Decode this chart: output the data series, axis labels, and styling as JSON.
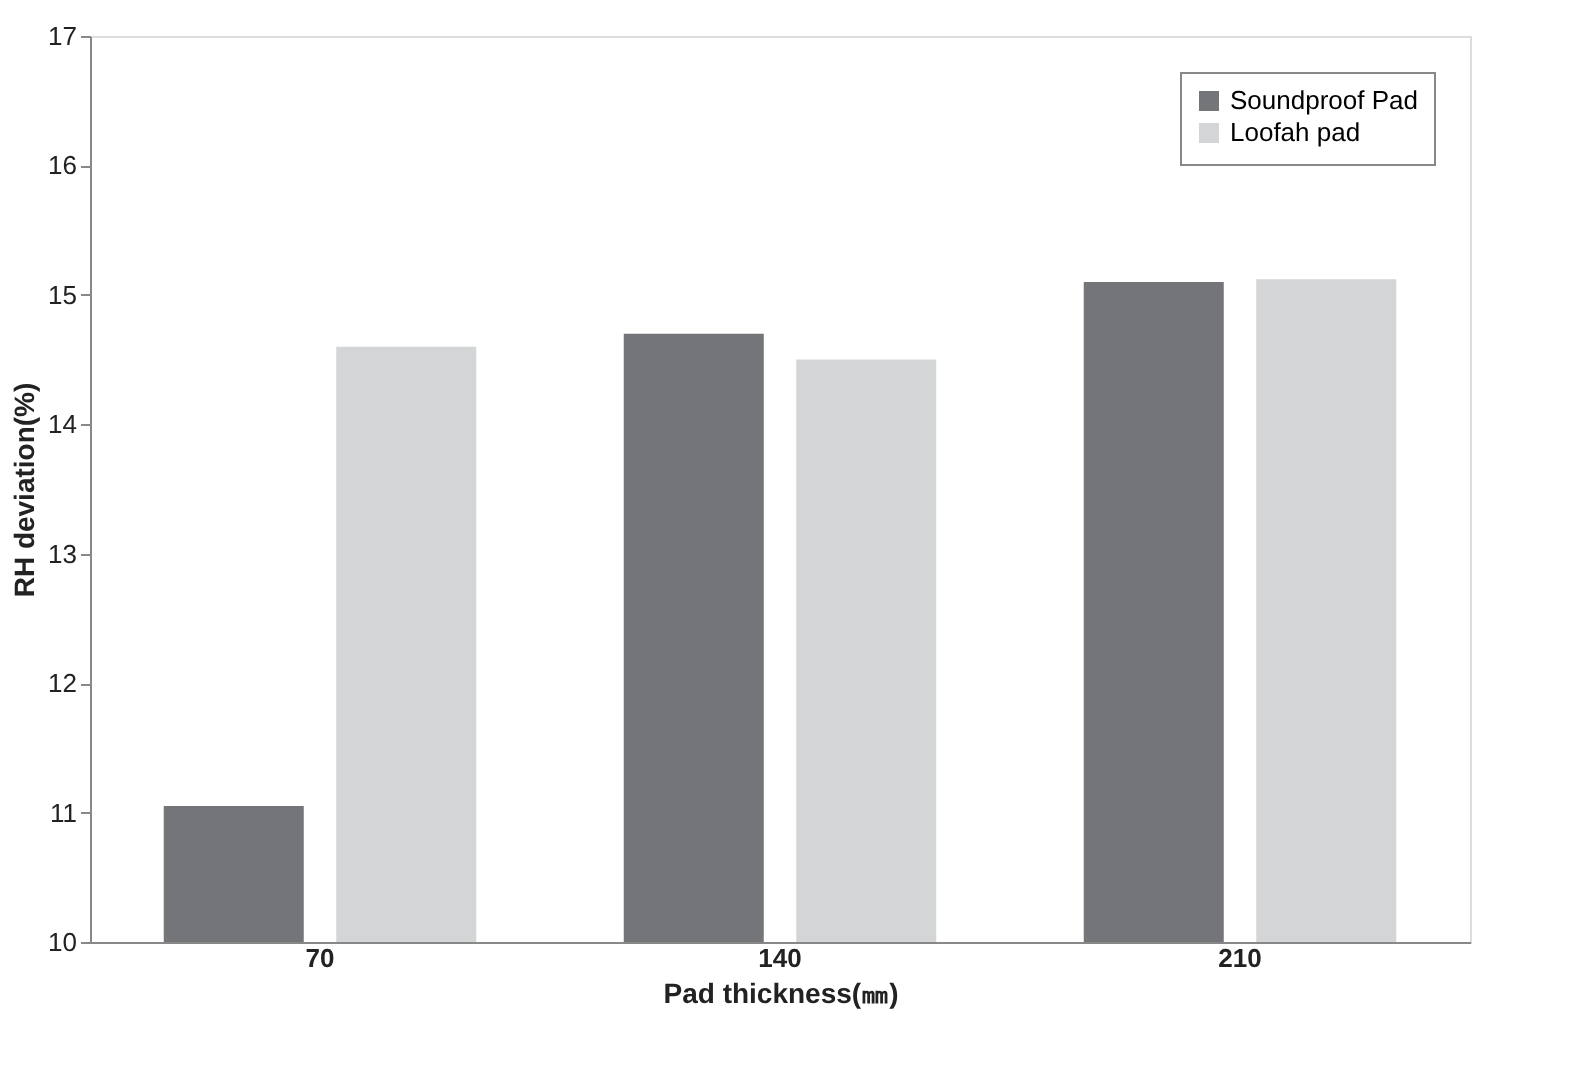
{
  "chart_data": {
    "type": "bar",
    "xlabel": "Pad thickness(㎜)",
    "ylabel": "RH deviation(%)",
    "categories": [
      "70",
      "140",
      "210"
    ],
    "series": [
      {
        "name": "Soundproof Pad",
        "color": "#747578",
        "values": [
          11.05,
          14.7,
          15.1
        ]
      },
      {
        "name": "Loofah pad",
        "color": "#d4d5d7",
        "values": [
          14.6,
          14.5,
          15.12
        ]
      }
    ],
    "ylim": [
      10,
      17
    ],
    "yticks": [
      10,
      11,
      12,
      13,
      14,
      15,
      16,
      17
    ],
    "grid": false,
    "legend": "top right"
  }
}
